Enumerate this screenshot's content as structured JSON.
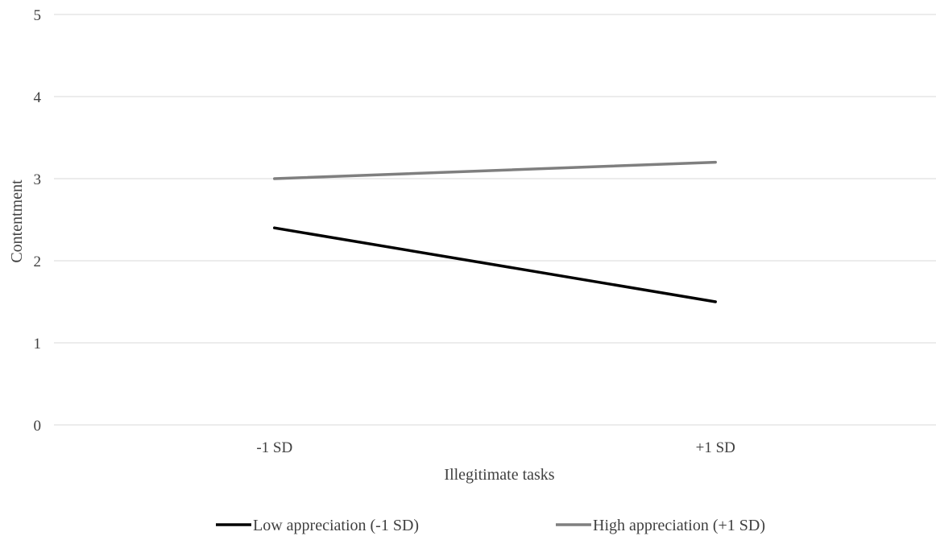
{
  "chart_data": {
    "type": "line",
    "title": "",
    "xlabel": "Illegitimate tasks",
    "ylabel": "Contentment",
    "categories": [
      "-1 SD",
      "+1 SD"
    ],
    "ylim": [
      0,
      5
    ],
    "yticks": [
      0,
      1,
      2,
      3,
      4,
      5
    ],
    "grid": true,
    "legend_position": "bottom",
    "series": [
      {
        "name": "Low appreciation  (-1 SD)",
        "values": [
          2.4,
          1.5
        ],
        "color": "#000000"
      },
      {
        "name": "High appreciation  (+1 SD)",
        "values": [
          3.0,
          3.2
        ],
        "color": "#7f7f7f"
      }
    ]
  },
  "colors": {
    "grid": "#d9d9d9",
    "text": "#404040"
  }
}
